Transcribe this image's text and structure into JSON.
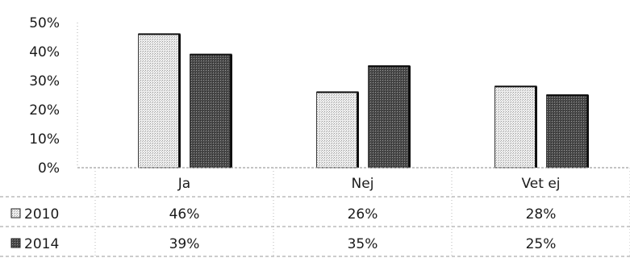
{
  "chart_data": {
    "type": "bar",
    "categories": [
      "Ja",
      "Nej",
      "Vet ej"
    ],
    "series": [
      {
        "name": "2010",
        "values": [
          46,
          26,
          28
        ],
        "labels": [
          "46%",
          "26%",
          "28%"
        ],
        "color": "#d9d9d9"
      },
      {
        "name": "2014",
        "values": [
          39,
          35,
          25
        ],
        "labels": [
          "39%",
          "35%",
          "25%"
        ],
        "color": "#6e6e6e"
      }
    ],
    "yticks": [
      "50%",
      "40%",
      "30%",
      "20%",
      "10%",
      "0%"
    ],
    "ylim": [
      0,
      50
    ],
    "grid": false,
    "legend": "data-table-left"
  }
}
